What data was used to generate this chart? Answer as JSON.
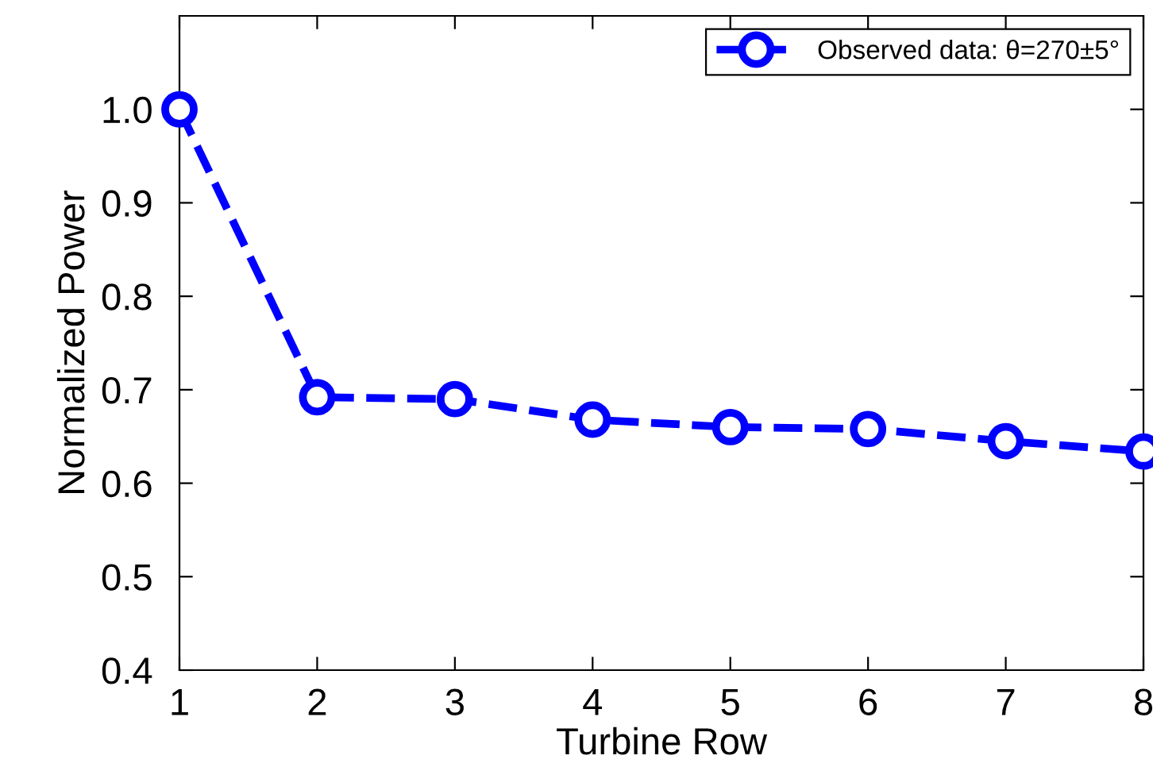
{
  "chart_data": {
    "type": "line",
    "xlabel": "Turbine Row",
    "ylabel": "Normalized Power",
    "x": [
      1,
      2,
      3,
      4,
      5,
      6,
      7,
      8
    ],
    "series": [
      {
        "name": "Observed data: θ=270±5°",
        "color": "#0000ff",
        "values": [
          1.0,
          0.692,
          0.69,
          0.668,
          0.66,
          0.658,
          0.645,
          0.634
        ]
      }
    ],
    "xlim": [
      1,
      8
    ],
    "xticks": [
      1,
      2,
      3,
      4,
      5,
      6,
      7,
      8
    ],
    "ylim": [
      0.4,
      1.1
    ],
    "yticks": [
      0.4,
      0.5,
      0.6,
      0.7,
      0.8,
      0.9,
      {
        "value": 1.0,
        "label": "1.0"
      }
    ],
    "grid": false,
    "legend": "top right",
    "marker": "circle",
    "line_style": "dashed"
  }
}
